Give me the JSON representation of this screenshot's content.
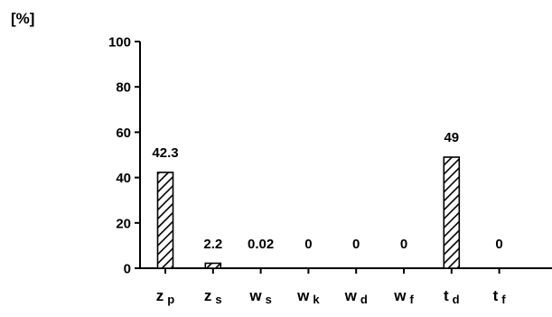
{
  "chart_data": {
    "type": "bar",
    "unit_label": "[%]",
    "categories": [
      {
        "base": "z",
        "sub": "p"
      },
      {
        "base": "z",
        "sub": "s"
      },
      {
        "base": "w",
        "sub": "s"
      },
      {
        "base": "w",
        "sub": "k"
      },
      {
        "base": "w",
        "sub": "d"
      },
      {
        "base": "w",
        "sub": "f"
      },
      {
        "base": "t",
        "sub": "d"
      },
      {
        "base": "t",
        "sub": "f"
      }
    ],
    "values": [
      42.3,
      2.2,
      0.02,
      0,
      0,
      0,
      49,
      0
    ],
    "data_labels": [
      "42.3",
      "2.2",
      "0.02",
      "0",
      "0",
      "0",
      "49",
      "0"
    ],
    "ylim": [
      0,
      100
    ],
    "yticks": [
      "0",
      "20",
      "40",
      "60",
      "80",
      "100"
    ],
    "bar_fill": "hatched",
    "grid": false
  }
}
